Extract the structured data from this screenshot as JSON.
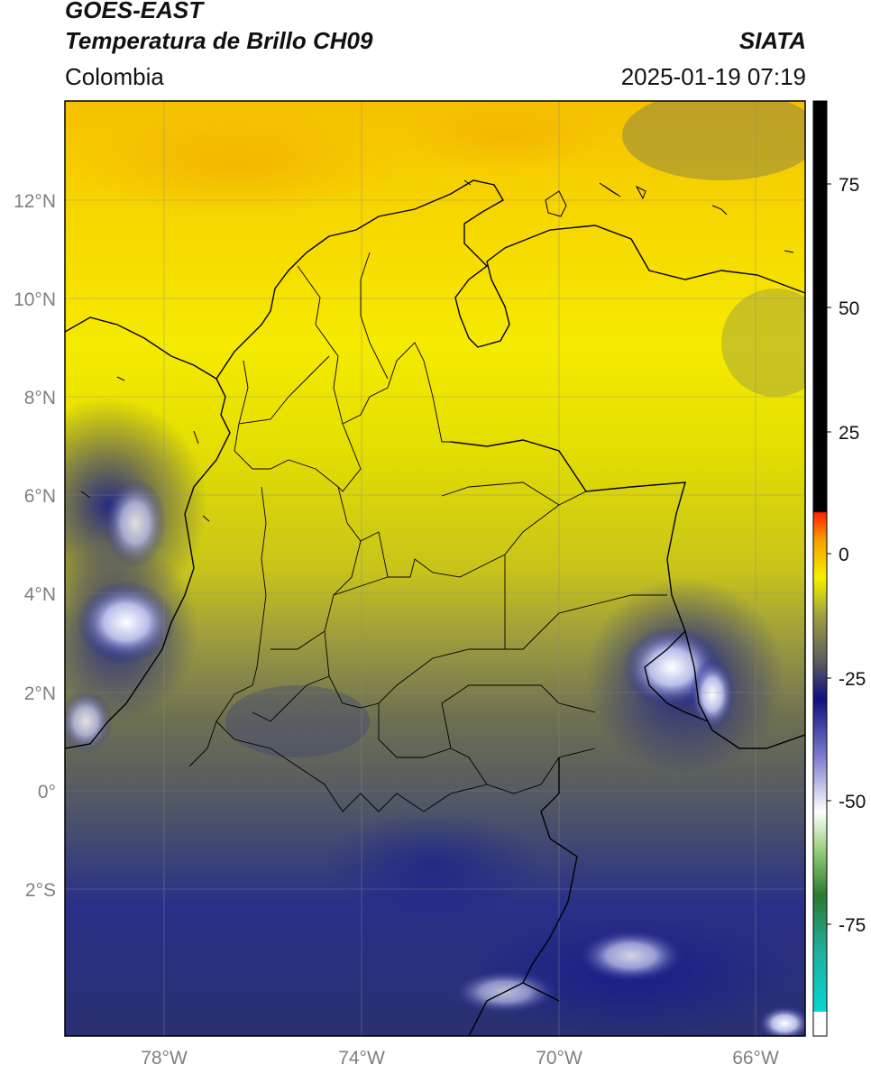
{
  "header": {
    "satellite": "GOES-EAST",
    "product": "Temperatura de Brillo CH09",
    "agency": "SIATA",
    "region": "Colombia",
    "timestamp": "2025-01-19 07:19"
  },
  "map": {
    "lat_labels": [
      "12°N",
      "10°N",
      "8°N",
      "6°N",
      "4°N",
      "2°N",
      "0°",
      "2°S"
    ],
    "lon_labels": [
      "78°W",
      "74°W",
      "70°W",
      "66°W"
    ]
  },
  "colorbar": {
    "ticks": [
      "75",
      "50",
      "25",
      "0",
      "-25",
      "-50",
      "-75"
    ]
  }
}
